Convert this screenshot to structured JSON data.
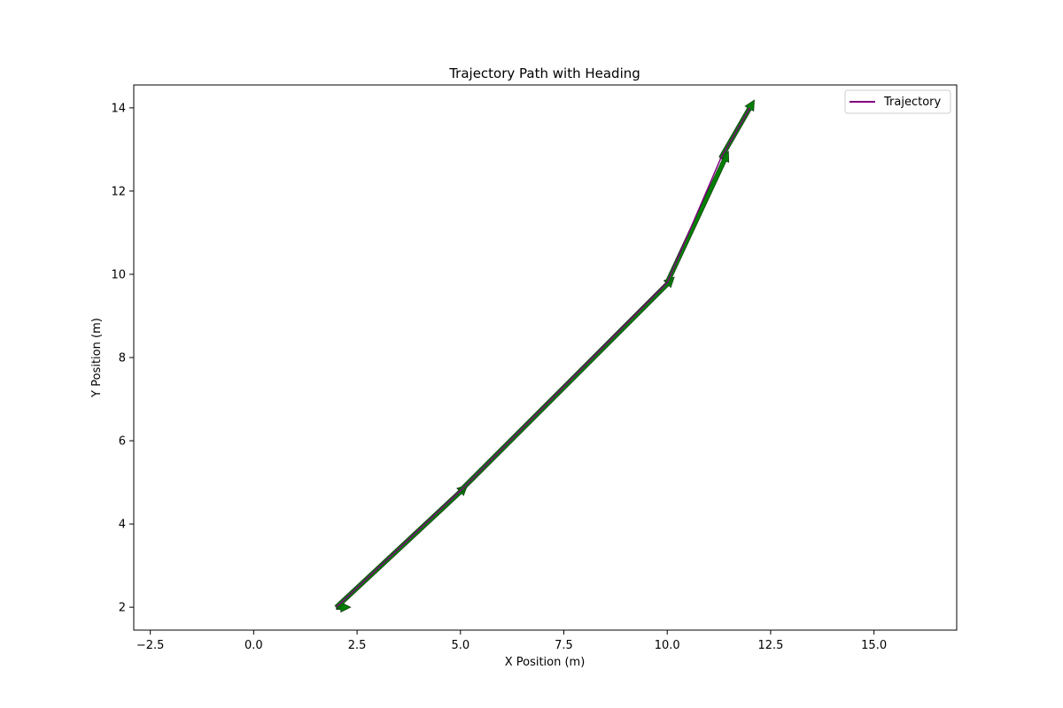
{
  "chart_data": {
    "type": "line",
    "title": "Trajectory Path with Heading",
    "xlabel": "X Position (m)",
    "ylabel": "Y Position (m)",
    "xlim": [
      -2.9,
      17.0
    ],
    "ylim": [
      1.45,
      14.55
    ],
    "x_ticks": [
      -2.5,
      0.0,
      2.5,
      5.0,
      7.5,
      10.0,
      12.5,
      15.0
    ],
    "x_tick_labels": [
      "−2.5",
      "0.0",
      "2.5",
      "5.0",
      "7.5",
      "10.0",
      "12.5",
      "15.0"
    ],
    "y_ticks": [
      2,
      4,
      6,
      8,
      10,
      12,
      14
    ],
    "y_tick_labels": [
      "2",
      "4",
      "6",
      "8",
      "10",
      "12",
      "14"
    ],
    "grid": false,
    "legend_position": "top-right",
    "series": [
      {
        "name": "Trajectory",
        "color": "#800080",
        "x": [
          2.0,
          5.0,
          10.0,
          11.3,
          12.0
        ],
        "y": [
          2.0,
          4.8,
          9.8,
          12.8,
          14.0
        ]
      }
    ],
    "heading_arrows": {
      "color": "#008000",
      "edge_color": "#1a3d1a",
      "items": [
        {
          "x": 2.0,
          "y": 2.0,
          "angle_deg": 0
        },
        {
          "x": 2.0,
          "y": 2.0,
          "angle_deg": 43
        },
        {
          "x": 5.0,
          "y": 4.8,
          "angle_deg": 45
        },
        {
          "x": 10.0,
          "y": 9.8,
          "angle_deg": 65
        },
        {
          "x": 11.3,
          "y": 12.8,
          "angle_deg": 60
        }
      ]
    }
  }
}
